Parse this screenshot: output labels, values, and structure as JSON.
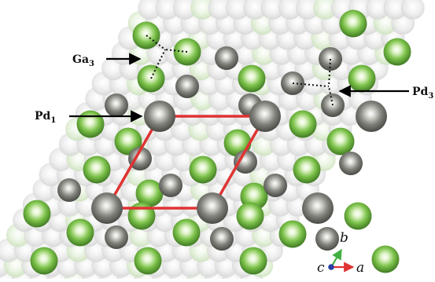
{
  "labels": {
    "ga3": {
      "base": "Ga",
      "sub": "3"
    },
    "pd1": {
      "base": "Pd",
      "sub": "1"
    },
    "pd3": {
      "base": "Pd",
      "sub": "3"
    }
  },
  "axes": {
    "a": "a",
    "b": "b",
    "c": "c"
  },
  "colors": {
    "ga": "#7cc24a",
    "pd_large": "#7c7c76",
    "pd_small": "#8a8a84",
    "unit_cell": "#e03333",
    "arrow_a": "#e03333",
    "arrow_b": "#40b040",
    "axis_c": "#2a3fa0"
  }
}
